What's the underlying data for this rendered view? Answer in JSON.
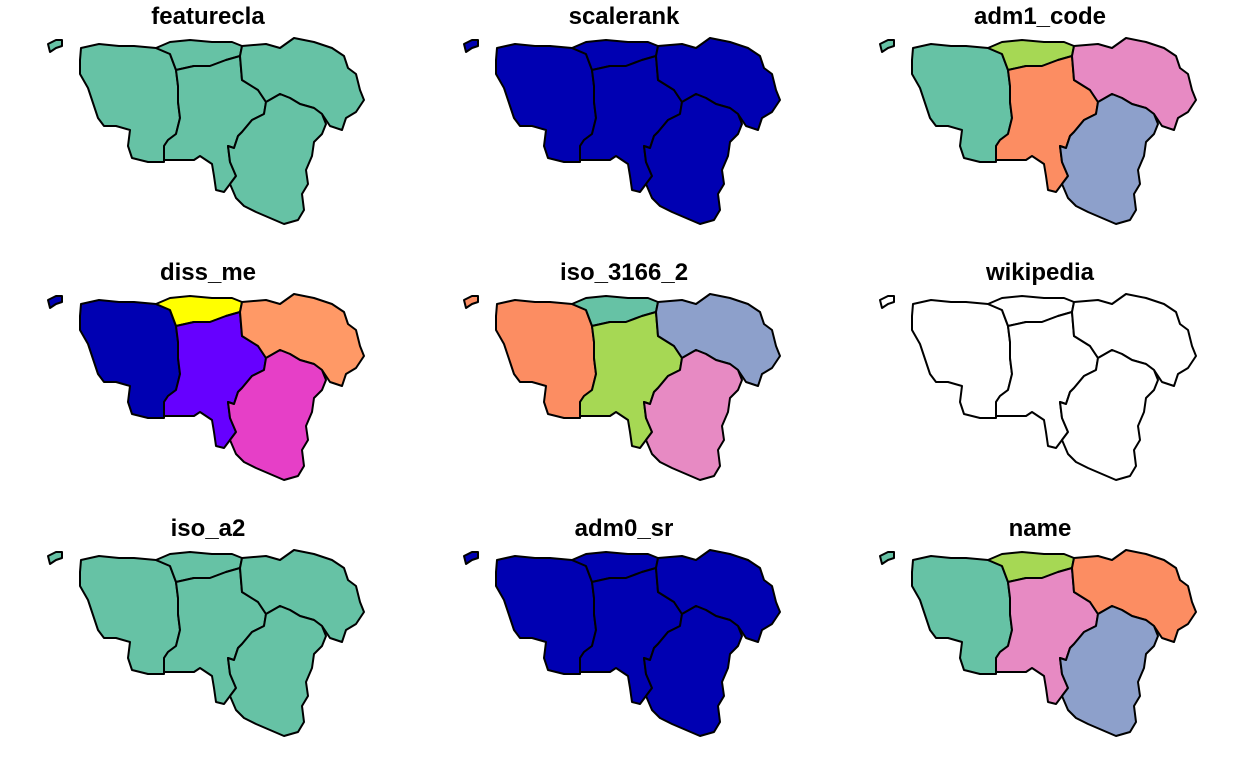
{
  "panels": [
    {
      "title": "featurecla",
      "fills": [
        "#66c2a5",
        "#66c2a5",
        "#66c2a5",
        "#66c2a5",
        "#66c2a5",
        "#66c2a5"
      ]
    },
    {
      "title": "scalerank",
      "fills": [
        "#0000b2",
        "#0000b2",
        "#0000b2",
        "#0000b2",
        "#0000b2",
        "#0000b2"
      ]
    },
    {
      "title": "adm1_code",
      "fills": [
        "#66c2a5",
        "#a6d854",
        "#fc8d62",
        "#e78ac3",
        "#8da0cb",
        "#66c2a5"
      ]
    },
    {
      "title": "diss_me",
      "fills": [
        "#0000b2",
        "#ffff00",
        "#6600ff",
        "#ff9966",
        "#e63fc7",
        "#0000b2"
      ]
    },
    {
      "title": "iso_3166_2",
      "fills": [
        "#fc8d62",
        "#66c2a5",
        "#a6d854",
        "#8da0cb",
        "#e78ac3",
        "#fc8d62"
      ]
    },
    {
      "title": "wikipedia",
      "fills": [
        "#ffffff",
        "#ffffff",
        "#ffffff",
        "#ffffff",
        "#ffffff",
        "#ffffff"
      ]
    },
    {
      "title": "iso_a2",
      "fills": [
        "#66c2a5",
        "#66c2a5",
        "#66c2a5",
        "#66c2a5",
        "#66c2a5",
        "#66c2a5"
      ]
    },
    {
      "title": "adm0_sr",
      "fills": [
        "#0000b2",
        "#0000b2",
        "#0000b2",
        "#0000b2",
        "#0000b2",
        "#0000b2"
      ]
    },
    {
      "title": "name",
      "fills": [
        "#66c2a5",
        "#a6d854",
        "#e78ac3",
        "#fc8d62",
        "#8da0cb",
        "#66c2a5"
      ]
    }
  ]
}
